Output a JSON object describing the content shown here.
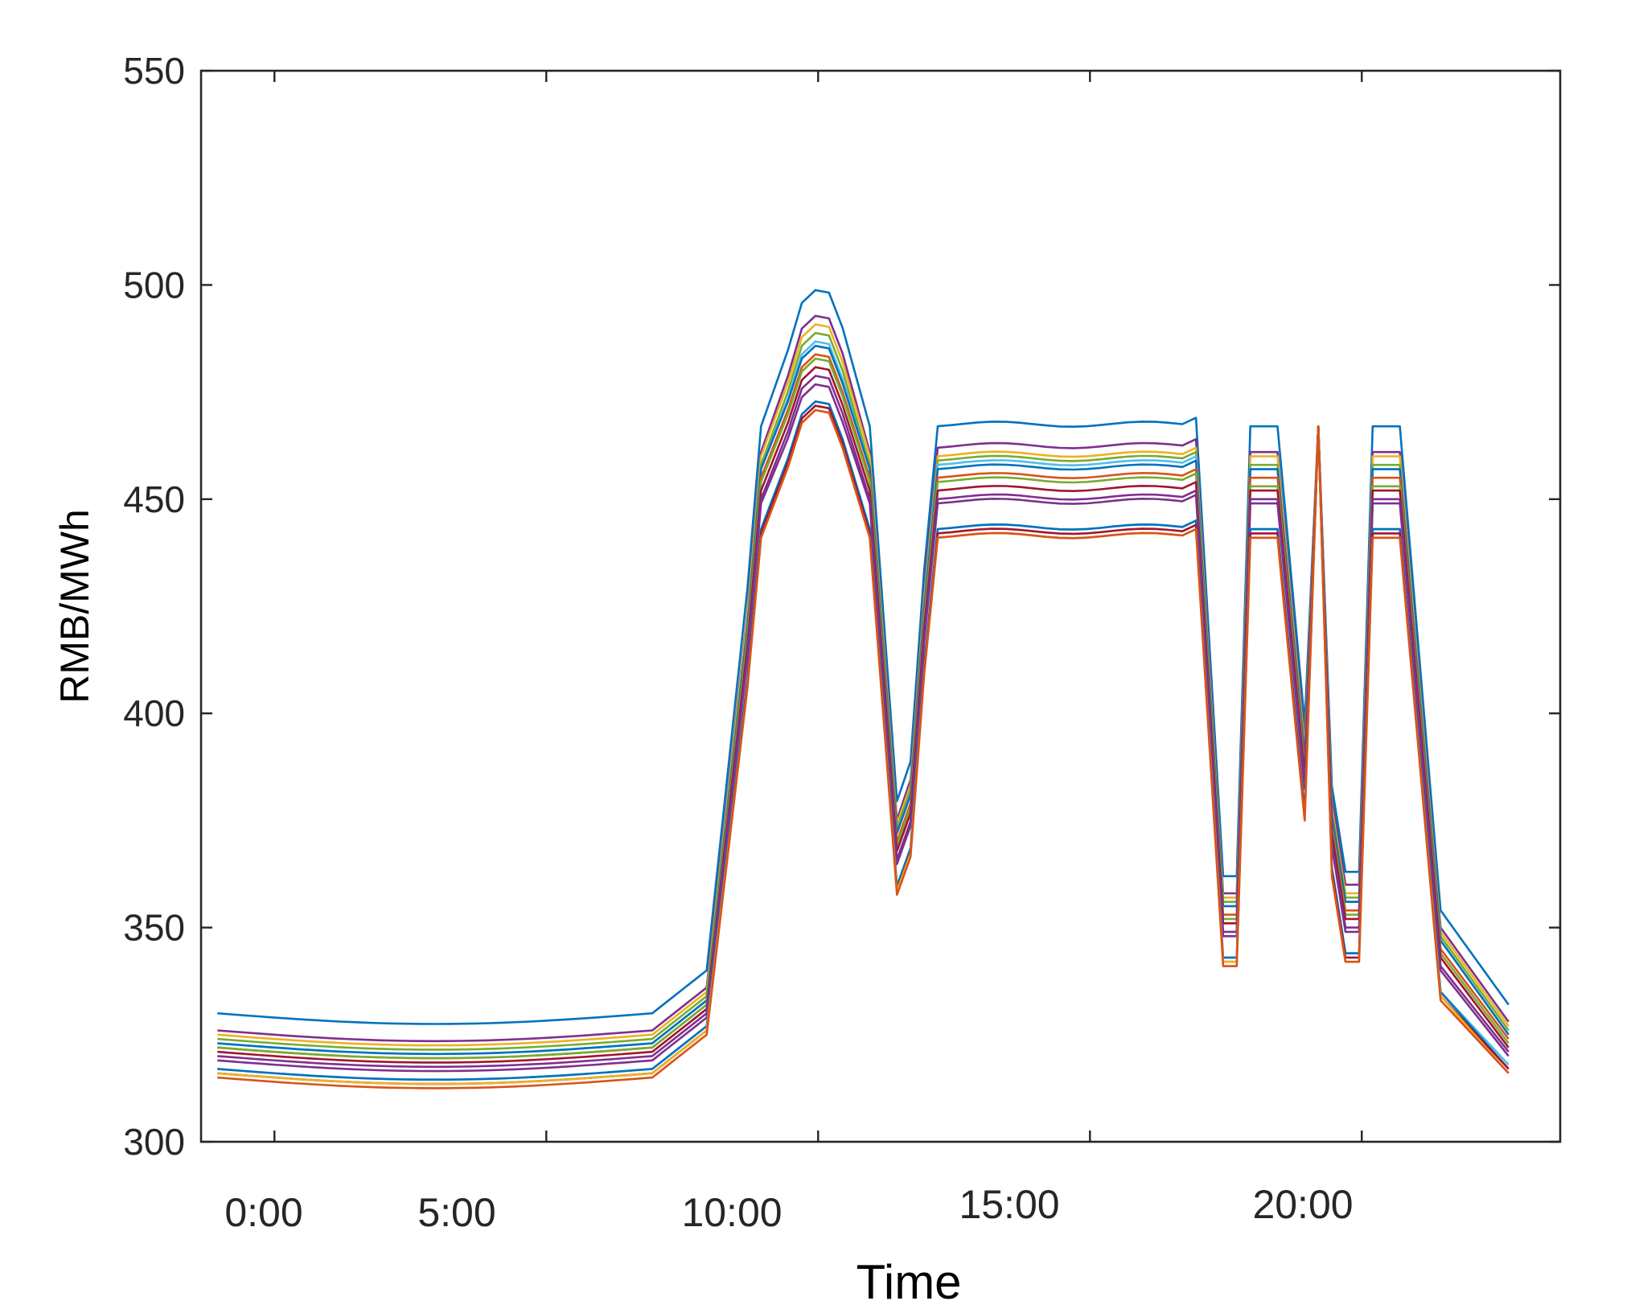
{
  "chart_data": {
    "type": "line",
    "title": "",
    "xlabel": "Time",
    "ylabel": "RMB/MWh",
    "xlim": [
      -0.3,
      24.7
    ],
    "ylim": [
      300,
      550
    ],
    "x_ticks": [
      0,
      5,
      10,
      15,
      20
    ],
    "x_tick_labels": [
      "0:00",
      "5:00",
      "10:00",
      "15:00",
      "20:00"
    ],
    "y_ticks": [
      300,
      350,
      400,
      450,
      500,
      550
    ],
    "y_tick_labels": [
      "300",
      "350",
      "400",
      "450",
      "500",
      "550"
    ],
    "grid": false,
    "legend": "none",
    "x_step_hours": 0.25,
    "description_of_series": "Many price scenarios over 96 quarter-hour intervals; each series shares the same shape, offset by level",
    "series": [
      {
        "color": "#0072BD",
        "night": 330,
        "peak": 500,
        "mid1": 467,
        "mid2": 469,
        "eve": 467,
        "dip1": 362,
        "dip2": 362,
        "dip3": 383,
        "late": 332
      },
      {
        "color": "#7E2F8E",
        "night": 326,
        "peak": 494,
        "mid1": 461,
        "mid2": 464,
        "eve": 461,
        "dip1": 358,
        "dip2": 358,
        "dip3": 380,
        "late": 328
      },
      {
        "color": "#EDB120",
        "night": 325,
        "peak": 492,
        "mid1": 460,
        "mid2": 462,
        "eve": 460,
        "dip1": 357,
        "dip2": 357,
        "dip3": 378,
        "late": 327
      },
      {
        "color": "#77AC30",
        "night": 324,
        "peak": 490,
        "mid1": 458,
        "mid2": 461,
        "eve": 458,
        "dip1": 356,
        "dip2": 356,
        "dip3": 377,
        "late": 326
      },
      {
        "color": "#4DBEEE",
        "night": 323,
        "peak": 488,
        "mid1": 457,
        "mid2": 460,
        "eve": 457,
        "dip1": 355,
        "dip2": 355,
        "dip3": 376,
        "late": 325
      },
      {
        "color": "#0072BD",
        "night": 323,
        "peak": 487,
        "mid1": 457,
        "mid2": 459,
        "eve": 457,
        "dip1": 355,
        "dip2": 355,
        "dip3": 376,
        "late": 325
      },
      {
        "color": "#D95319",
        "night": 322,
        "peak": 485,
        "mid1": 455,
        "mid2": 457,
        "eve": 455,
        "dip1": 353,
        "dip2": 353,
        "dip3": 374,
        "late": 324
      },
      {
        "color": "#77AC30",
        "night": 322,
        "peak": 484,
        "mid1": 454,
        "mid2": 456,
        "eve": 453,
        "dip1": 352,
        "dip2": 352,
        "dip3": 373,
        "late": 323
      },
      {
        "color": "#A2142F",
        "night": 321,
        "peak": 482,
        "mid1": 452,
        "mid2": 454,
        "eve": 452,
        "dip1": 351,
        "dip2": 351,
        "dip3": 372,
        "late": 322
      },
      {
        "color": "#7E2F8E",
        "night": 320,
        "peak": 480,
        "mid1": 450,
        "mid2": 452,
        "eve": 450,
        "dip1": 349,
        "dip2": 349,
        "dip3": 370,
        "late": 321
      },
      {
        "color": "#7E2F8E",
        "night": 319,
        "peak": 478,
        "mid1": 449,
        "mid2": 451,
        "eve": 449,
        "dip1": 348,
        "dip2": 348,
        "dip3": 369,
        "late": 320
      },
      {
        "color": "#4DBEEE",
        "night": 317,
        "peak": 474,
        "mid1": 443,
        "mid2": 445,
        "eve": 443,
        "dip1": 343,
        "dip2": 343,
        "dip3": 364,
        "late": 318
      },
      {
        "color": "#0072BD",
        "night": 317,
        "peak": 474,
        "mid1": 443,
        "mid2": 445,
        "eve": 443,
        "dip1": 343,
        "dip2": 343,
        "dip3": 364,
        "late": 317
      },
      {
        "color": "#A2142F",
        "night": 316,
        "peak": 473,
        "mid1": 442,
        "mid2": 444,
        "eve": 442,
        "dip1": 342,
        "dip2": 342,
        "dip3": 363,
        "late": 317
      },
      {
        "color": "#EDB120",
        "night": 316,
        "peak": 472,
        "mid1": 441,
        "mid2": 443,
        "eve": 441,
        "dip1": 342,
        "dip2": 342,
        "dip3": 362,
        "late": 316
      },
      {
        "color": "#D95319",
        "night": 315,
        "peak": 472,
        "mid1": 441,
        "mid2": 443,
        "eve": 441,
        "dip1": 341,
        "dip2": 341,
        "dip3": 362,
        "late": 316
      }
    ]
  }
}
